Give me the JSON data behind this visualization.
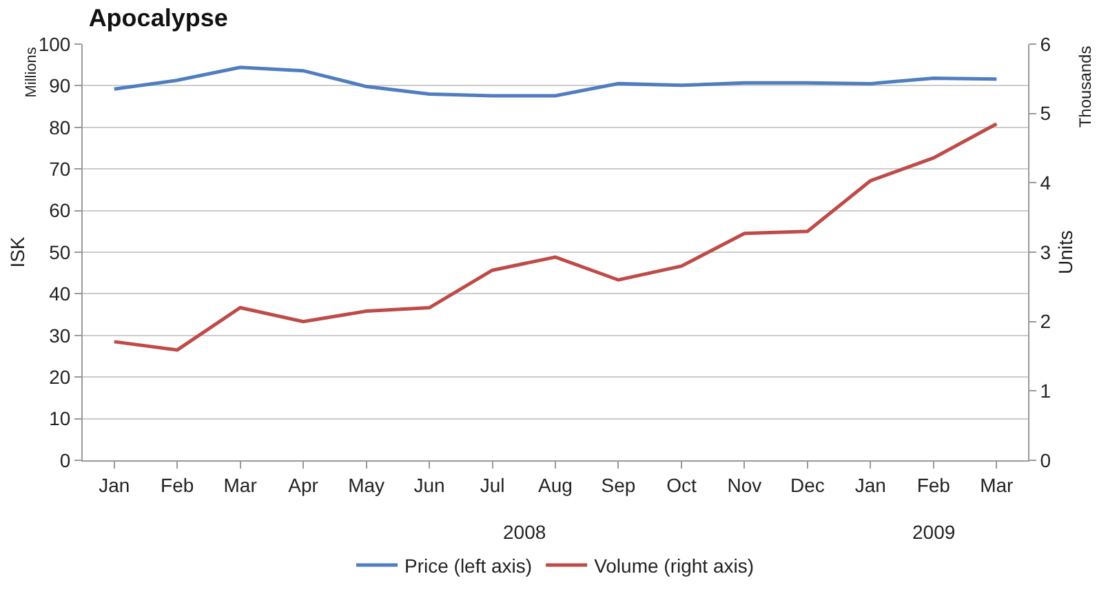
{
  "chart_data": {
    "type": "line",
    "title": "Apocalypse",
    "ylabel": "ISK",
    "y2label": "Units",
    "annotations": [
      "Millions",
      "Thousands",
      "2008",
      "2009"
    ],
    "categories": [
      "Jan",
      "Feb",
      "Mar",
      "Apr",
      "May",
      "Jun",
      "Jul",
      "Aug",
      "Sep",
      "Oct",
      "Nov",
      "Dec",
      "Jan",
      "Feb",
      "Mar"
    ],
    "series": [
      {
        "name": "Price (left axis)",
        "color": "#4f7dbf",
        "values": [
          89.2,
          91.3,
          94.4,
          93.6,
          89.8,
          88,
          87.6,
          87.6,
          90.5,
          90.1,
          90.7,
          90.7,
          90.5,
          91.8,
          91.6
        ]
      },
      {
        "name": "Volume (right axis)",
        "color": "#bf4b48",
        "axis": "y2",
        "values": [
          1.71,
          1.59,
          2.2,
          2.0,
          2.15,
          2.2,
          2.74,
          2.93,
          2.6,
          2.8,
          3.27,
          3.3,
          4.03,
          4.36,
          4.85
        ]
      }
    ],
    "ylim": [
      0,
      100
    ],
    "yticks": [
      0,
      10,
      20,
      30,
      40,
      50,
      60,
      70,
      80,
      90,
      100
    ],
    "y2lim": [
      0,
      6
    ],
    "y2ticks": [
      0,
      1,
      2,
      3,
      4,
      5,
      6
    ],
    "grid": "y",
    "legend": "bottom",
    "marker": "none",
    "line_style": "solid"
  }
}
